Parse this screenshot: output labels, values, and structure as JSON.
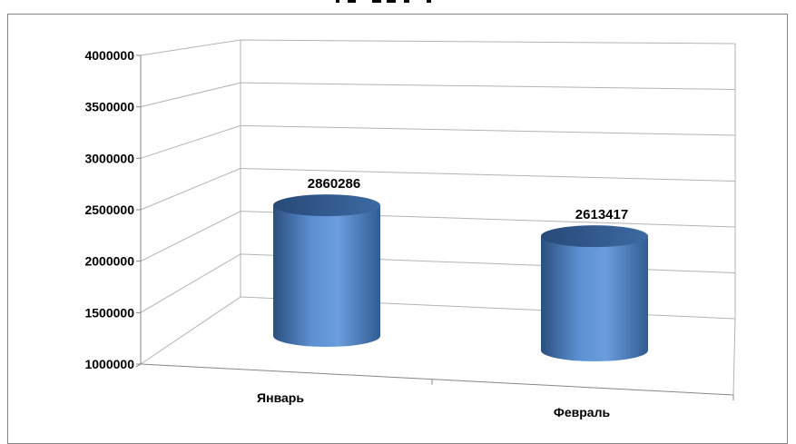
{
  "chart_data": {
    "type": "bar",
    "bar_shape": "cylinder-3d",
    "categories": [
      "Январь",
      "Февраль"
    ],
    "values": [
      2860286,
      2613417
    ],
    "data_labels": [
      "2860286",
      "2613417"
    ],
    "yticks": [
      "4000000",
      "3500000",
      "3000000",
      "2500000",
      "2000000",
      "1500000",
      "1000000"
    ],
    "ylim": [
      1000000,
      4000000
    ],
    "grid": true,
    "legend": "none",
    "colors": {
      "bar": "#4F81BD",
      "bar_dark": "#2E5A8E",
      "bar_light": "#7FA7DA",
      "grid": "#B3B3B3",
      "axis": "#868686"
    }
  }
}
